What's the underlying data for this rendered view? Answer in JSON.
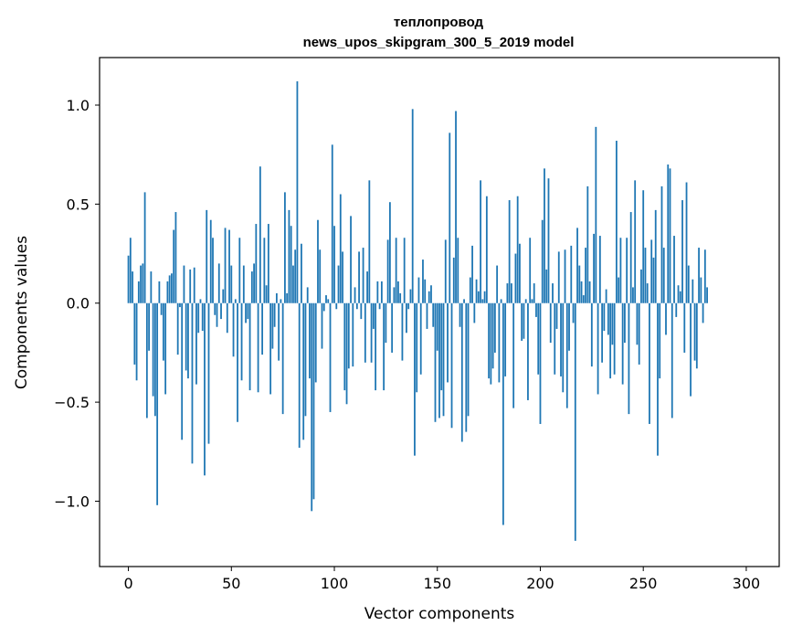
{
  "chart_data": {
    "type": "bar",
    "title": "теплопровод",
    "subtitle": "news_upos_skipgram_300_5_2019 model",
    "xlabel": "Vector components",
    "ylabel": "Components values",
    "xlim": [
      -14,
      316
    ],
    "ylim": [
      -1.33,
      1.24
    ],
    "xticks": [
      0,
      50,
      100,
      150,
      200,
      250,
      300
    ],
    "xtick_labels": [
      "0",
      "50",
      "100",
      "150",
      "200",
      "250",
      "300"
    ],
    "yticks": [
      -1.0,
      -0.5,
      0.0,
      0.5,
      1.0
    ],
    "ytick_labels": [
      "−1.0",
      "−0.5",
      "0.0",
      "0.5",
      "1.0"
    ],
    "bar_color": "#1f77b4",
    "values": [
      0.24,
      0.33,
      0.16,
      -0.31,
      -0.39,
      0.11,
      0.19,
      0.2,
      0.56,
      -0.58,
      -0.24,
      0.16,
      -0.47,
      -0.57,
      -1.02,
      0.11,
      -0.06,
      -0.29,
      -0.46,
      0.11,
      0.14,
      0.15,
      0.37,
      0.46,
      -0.26,
      -0.02,
      -0.69,
      0.19,
      -0.34,
      -0.38,
      0.17,
      -0.81,
      0.18,
      -0.41,
      -0.15,
      0.02,
      -0.14,
      -0.87,
      0.47,
      -0.71,
      0.42,
      0.33,
      -0.06,
      -0.12,
      0.2,
      -0.08,
      0.07,
      0.38,
      -0.15,
      0.37,
      0.19,
      -0.27,
      0.02,
      -0.6,
      0.33,
      -0.39,
      0.19,
      -0.1,
      -0.08,
      -0.44,
      0.16,
      0.2,
      0.4,
      -0.45,
      0.69,
      -0.26,
      0.33,
      0.09,
      0.4,
      -0.46,
      -0.23,
      -0.12,
      0.05,
      -0.29,
      0.02,
      -0.56,
      0.56,
      0.05,
      0.47,
      0.39,
      0.19,
      0.27,
      1.12,
      -0.73,
      0.3,
      -0.69,
      -0.57,
      0.08,
      -0.38,
      -1.05,
      -0.99,
      -0.4,
      0.42,
      0.27,
      -0.23,
      -0.04,
      0.04,
      0.02,
      -0.55,
      0.8,
      0.39,
      -0.03,
      0.19,
      0.55,
      0.26,
      -0.44,
      -0.51,
      -0.33,
      0.44,
      -0.32,
      0.08,
      -0.03,
      0.26,
      -0.08,
      0.28,
      -0.3,
      0.16,
      0.62,
      -0.3,
      -0.13,
      -0.44,
      0.11,
      -0.03,
      0.11,
      -0.44,
      -0.2,
      0.32,
      0.51,
      -0.25,
      0.08,
      0.33,
      0.11,
      0.05,
      -0.29,
      0.33,
      -0.15,
      -0.03,
      0.07,
      0.98,
      -0.77,
      -0.45,
      0.13,
      -0.36,
      0.22,
      0.12,
      -0.13,
      0.06,
      0.09,
      -0.12,
      -0.6,
      -0.24,
      -0.58,
      -0.44,
      -0.57,
      0.32,
      -0.4,
      0.86,
      -0.63,
      0.23,
      0.97,
      0.33,
      -0.12,
      -0.7,
      0.02,
      -0.65,
      -0.57,
      0.13,
      0.29,
      -0.1,
      0.12,
      0.06,
      0.62,
      0.02,
      0.06,
      0.54,
      -0.38,
      -0.41,
      -0.33,
      -0.25,
      0.19,
      -0.4,
      0.02,
      -1.12,
      -0.37,
      0.1,
      0.52,
      0.1,
      -0.53,
      0.25,
      0.54,
      0.3,
      -0.19,
      -0.18,
      0.02,
      -0.49,
      0.33,
      0.02,
      0.1,
      -0.07,
      -0.36,
      -0.61,
      0.42,
      0.68,
      0.17,
      0.63,
      -0.2,
      0.1,
      -0.36,
      -0.13,
      0.26,
      -0.37,
      -0.45,
      0.27,
      -0.53,
      -0.24,
      0.29,
      -0.1,
      -1.2,
      0.38,
      0.19,
      0.11,
      0.04,
      0.28,
      0.59,
      0.11,
      -0.32,
      0.35,
      0.89,
      -0.46,
      0.34,
      -0.3,
      -0.14,
      0.07,
      -0.16,
      -0.38,
      -0.21,
      -0.36,
      0.82,
      0.13,
      0.33,
      -0.41,
      -0.2,
      0.33,
      -0.56,
      0.46,
      0.08,
      0.62,
      -0.21,
      -0.31,
      0.17,
      0.57,
      0.28,
      0.1,
      -0.61,
      0.32,
      0.23,
      0.47,
      -0.77,
      -0.38,
      0.59,
      0.28,
      -0.16,
      0.7,
      0.68,
      -0.58,
      0.34,
      -0.07,
      0.09,
      0.06,
      0.52,
      -0.25,
      0.61,
      0.19,
      -0.47,
      0.12,
      -0.29,
      -0.33,
      0.28,
      0.13,
      -0.1,
      0.27,
      0.08
    ]
  }
}
